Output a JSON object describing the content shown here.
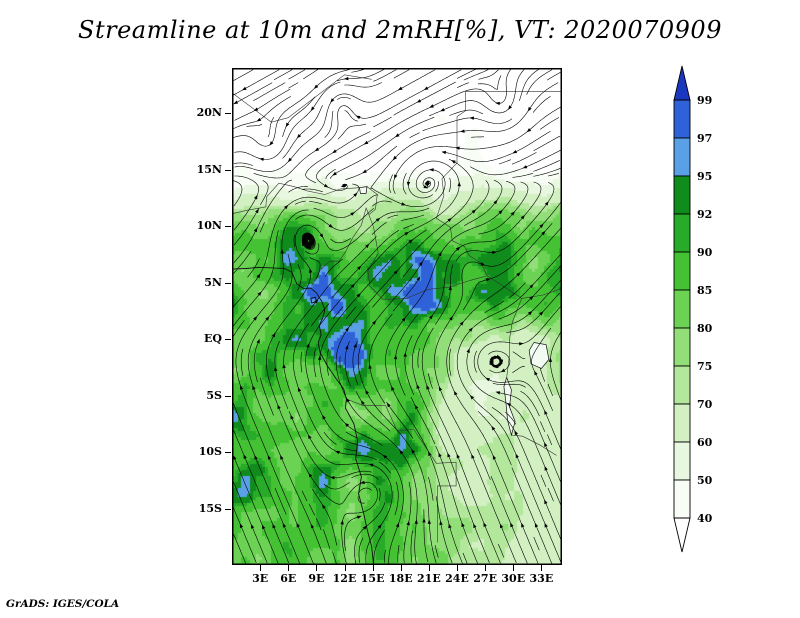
{
  "title": "Streamline at 10m and 2mRH[%], VT: 2020070909",
  "attribution": "GrADS: IGES/COLA",
  "chart_data": {
    "type": "heatmap",
    "title": "Streamline at 10m and 2mRH[%], VT: 2020070909",
    "variable": "2m relative humidity [%] shaded with 10m wind streamlines",
    "valid_time": "2020070909",
    "xlabel": "",
    "ylabel": "",
    "legend_position": "right",
    "grid": false,
    "extent": {
      "lon_min": 0,
      "lon_max": 35.2,
      "lat_min": -20,
      "lat_max": 24
    },
    "lat_ticks": [
      {
        "label": "20N",
        "lat": 20
      },
      {
        "label": "15N",
        "lat": 15
      },
      {
        "label": "10N",
        "lat": 10
      },
      {
        "label": "5N",
        "lat": 5
      },
      {
        "label": "EQ",
        "lat": 0
      },
      {
        "label": "5S",
        "lat": -5
      },
      {
        "label": "10S",
        "lat": -10
      },
      {
        "label": "15S",
        "lat": -15
      }
    ],
    "lon_ticks": [
      {
        "label": "3E",
        "lon": 3
      },
      {
        "label": "6E",
        "lon": 6
      },
      {
        "label": "9E",
        "lon": 9
      },
      {
        "label": "12E",
        "lon": 12
      },
      {
        "label": "15E",
        "lon": 15
      },
      {
        "label": "18E",
        "lon": 18
      },
      {
        "label": "21E",
        "lon": 21
      },
      {
        "label": "24E",
        "lon": 24
      },
      {
        "label": "27E",
        "lon": 27
      },
      {
        "label": "30E",
        "lon": 30
      },
      {
        "label": "33E",
        "lon": 33
      }
    ],
    "colorbar": {
      "orientation": "vertical",
      "units": "%",
      "levels": [
        40,
        50,
        60,
        70,
        75,
        80,
        85,
        90,
        92,
        95,
        97,
        99
      ],
      "colors_bottom_to_top": [
        "#ffffff",
        "#f8fdf5",
        "#e8f7df",
        "#d2f0c2",
        "#b2e79c",
        "#92de79",
        "#6bd254",
        "#44c234",
        "#27ab28",
        "#0f8c1c",
        "#5aa0e6",
        "#2f62d8",
        "#1a38bf"
      ]
    },
    "map_outlines": {
      "coast": [
        [
          0,
          6.2
        ],
        [
          1.5,
          6.25
        ],
        [
          2.8,
          6.35
        ],
        [
          4.4,
          6.3
        ],
        [
          5.6,
          6.25
        ],
        [
          6.4,
          5.9
        ],
        [
          6.9,
          4.9
        ],
        [
          7.6,
          4.5
        ],
        [
          8.4,
          4.5
        ],
        [
          9.0,
          4.1
        ],
        [
          9.6,
          3.3
        ],
        [
          9.9,
          2.6
        ],
        [
          9.7,
          1.9
        ],
        [
          9.3,
          1.2
        ],
        [
          9.5,
          0.4
        ],
        [
          9.2,
          -0.3
        ],
        [
          9.4,
          -1.2
        ],
        [
          10.2,
          -2.4
        ],
        [
          11.1,
          -3.5
        ],
        [
          11.9,
          -4.4
        ],
        [
          12.2,
          -5.3
        ],
        [
          12.1,
          -6.1
        ],
        [
          13.0,
          -7.5
        ],
        [
          13.4,
          -9.0
        ],
        [
          13.2,
          -10.6
        ],
        [
          13.8,
          -12.2
        ],
        [
          13.5,
          -13.7
        ],
        [
          14.0,
          -15.3
        ],
        [
          14.4,
          -16.8
        ],
        [
          14.9,
          -18.4
        ],
        [
          15.1,
          -20
        ]
      ],
      "bioko": [
        [
          8.4,
          3.6
        ],
        [
          8.9,
          3.7
        ],
        [
          9.0,
          3.3
        ],
        [
          8.5,
          3.2
        ]
      ],
      "borders": [
        [
          [
            0,
            11.1
          ],
          [
            1.6,
            11.4
          ],
          [
            3.6,
            11.7
          ],
          [
            3.7,
            12.6
          ],
          [
            5,
            13.8
          ],
          [
            6.6,
            13.5
          ],
          [
            8.1,
            13.1
          ],
          [
            9.9,
            12.8
          ],
          [
            11.6,
            13.3
          ],
          [
            13.6,
            13.4
          ]
        ],
        [
          [
            14.4,
            13.5
          ],
          [
            15.5,
            12.8
          ],
          [
            15.3,
            11.5
          ],
          [
            14.6,
            11
          ],
          [
            15.1,
            9.9
          ],
          [
            15.6,
            7.6
          ],
          [
            14.5,
            6
          ],
          [
            14.7,
            4.7
          ],
          [
            16.1,
            3.5
          ],
          [
            18.6,
            3.6
          ],
          [
            20.9,
            4.4
          ],
          [
            23.2,
            4.6
          ],
          [
            25.4,
            5.2
          ],
          [
            27.2,
            5.6
          ],
          [
            29.1,
            4.6
          ],
          [
            30.9,
            3.6
          ],
          [
            33.2,
            3.9
          ],
          [
            35.2,
            4.5
          ]
        ],
        [
          [
            8.5,
            4.7
          ],
          [
            9.4,
            6.1
          ],
          [
            10.4,
            6.9
          ],
          [
            11.4,
            6.9
          ],
          [
            12.1,
            7.7
          ],
          [
            12.9,
            9
          ],
          [
            13.8,
            10.1
          ],
          [
            14.3,
            11.6
          ],
          [
            14.6,
            11
          ]
        ],
        [
          [
            0,
            21.8
          ],
          [
            4.2,
            19.2
          ],
          [
            6,
            19.6
          ],
          [
            12,
            23.4
          ],
          [
            14.9,
            23
          ]
        ],
        [
          [
            24,
            19.7
          ],
          [
            24,
            15.6
          ],
          [
            22.4,
            14.2
          ],
          [
            22.6,
            12.7
          ],
          [
            21.8,
            10.7
          ],
          [
            23.3,
            9.9
          ],
          [
            23.5,
            8.7
          ],
          [
            24.8,
            8.2
          ],
          [
            25.3,
            7.4
          ],
          [
            26.6,
            6.7
          ],
          [
            27.2,
            5.6
          ]
        ],
        [
          [
            24,
            19.7
          ],
          [
            24.9,
            20.2
          ],
          [
            24.9,
            21.9
          ],
          [
            35.2,
            21.9
          ]
        ],
        [
          [
            12.2,
            -5.3
          ],
          [
            14,
            -5.9
          ],
          [
            16.4,
            -5.9
          ],
          [
            17.6,
            -8.1
          ],
          [
            19.4,
            -8
          ],
          [
            21.8,
            -11
          ],
          [
            23.9,
            -10.9
          ],
          [
            23.9,
            -13
          ],
          [
            21.9,
            -13
          ],
          [
            21.9,
            -18
          ]
        ],
        [
          [
            30.9,
            3.6
          ],
          [
            29.9,
            1.5
          ],
          [
            29.6,
            0
          ],
          [
            29.6,
            -1.4
          ],
          [
            29.3,
            -3.4
          ]
        ],
        [
          [
            29.8,
            -8.5
          ],
          [
            31,
            -8.6
          ],
          [
            32.9,
            -9.4
          ],
          [
            34.6,
            -10.3
          ]
        ]
      ],
      "lakes": [
        [
          [
            32.2,
            -0.3
          ],
          [
            33.5,
            -0.5
          ],
          [
            33.8,
            -1.8
          ],
          [
            33,
            -2.6
          ],
          [
            31.9,
            -2.2
          ],
          [
            31.7,
            -1
          ]
        ],
        [
          [
            29.3,
            -3.4
          ],
          [
            29.8,
            -4.5
          ],
          [
            29.6,
            -6
          ],
          [
            30.2,
            -7.3
          ],
          [
            29.8,
            -8.5
          ],
          [
            29.4,
            -7.2
          ],
          [
            29.2,
            -5.5
          ],
          [
            29,
            -4.2
          ]
        ],
        [
          [
            13.6,
            13.4
          ],
          [
            14.4,
            13.5
          ],
          [
            14.3,
            12.9
          ],
          [
            13.7,
            12.9
          ]
        ]
      ]
    }
  }
}
